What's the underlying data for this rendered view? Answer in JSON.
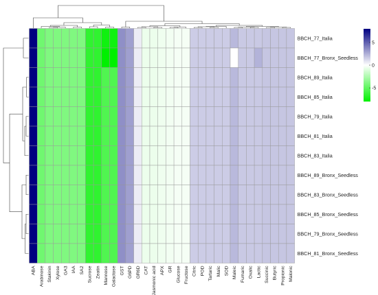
{
  "chart_data": {
    "type": "heatmap",
    "rows": [
      "BBCH_77_Italia",
      "BBCH_77_Bronx_Seedless",
      "BBCH_89_Italia",
      "BBCH_85_Italia",
      "BBCH_79_Italia",
      "BBCH_81_Italia",
      "BBCH_83_Italia",
      "BBCH_89_Bronx_Seedless",
      "BBCH_83_Bronx_Seedless",
      "BBCH_85_Bronx_Seedless",
      "BBCH_79_Bronx_Seedless",
      "BBCH_81_Bronx_Seedless"
    ],
    "columns": [
      "ABA",
      "Arabinose",
      "Stakinin",
      "Xylose",
      "GA3",
      "IAA",
      "SA2",
      "Sucrose",
      "Zeatin",
      "Mannose",
      "Galactose",
      "GST",
      "G6PD",
      "GR6D",
      "CAT",
      "Jasmonic acid",
      "APX",
      "GR",
      "Glucose",
      "Fructose",
      "Citric",
      "POD",
      "Tartaric",
      "Malic",
      "SOD",
      "Maleic",
      "Fumaric",
      "Oxalic",
      "Lactic",
      "Succinic",
      "Butyric",
      "Propionic",
      "Malonic"
    ],
    "base_values": [
      8.5,
      -4.5,
      -4.0,
      -4.0,
      -4.0,
      -4.0,
      -4.0,
      -6.5,
      -6.5,
      -5.5,
      -5.5,
      3.5,
      3.0,
      0.6,
      -0.6,
      -0.6,
      -0.5,
      -0.4,
      -0.3,
      -0.3,
      1.6,
      1.6,
      1.6,
      1.6,
      1.6,
      2.2,
      1.7,
      1.7,
      1.7,
      1.8,
      1.8,
      1.8,
      1.8
    ],
    "overrides": [
      {
        "row": "BBCH_77_Italia",
        "column": "Mannose",
        "value": -7.5
      },
      {
        "row": "BBCH_77_Italia",
        "column": "Galactose",
        "value": -7.5
      },
      {
        "row": "BBCH_77_Bronx_Seedless",
        "column": "Mannose",
        "value": -8.0
      },
      {
        "row": "BBCH_77_Bronx_Seedless",
        "column": "Galactose",
        "value": -8.0
      },
      {
        "row": "BBCH_77_Bronx_Seedless",
        "column": "Maleic",
        "value": 0.0
      },
      {
        "row": "BBCH_77_Bronx_Seedless",
        "column": "Lactic",
        "value": 2.4
      }
    ],
    "color_scale": {
      "min": -8,
      "max": 8,
      "low": "#00f000",
      "mid": "#ffffff",
      "high": "#000080"
    },
    "legend": {
      "position": "top-right",
      "ticks": [
        5,
        0,
        -5
      ]
    },
    "dendrograms": {
      "rows": true,
      "columns": true
    }
  }
}
